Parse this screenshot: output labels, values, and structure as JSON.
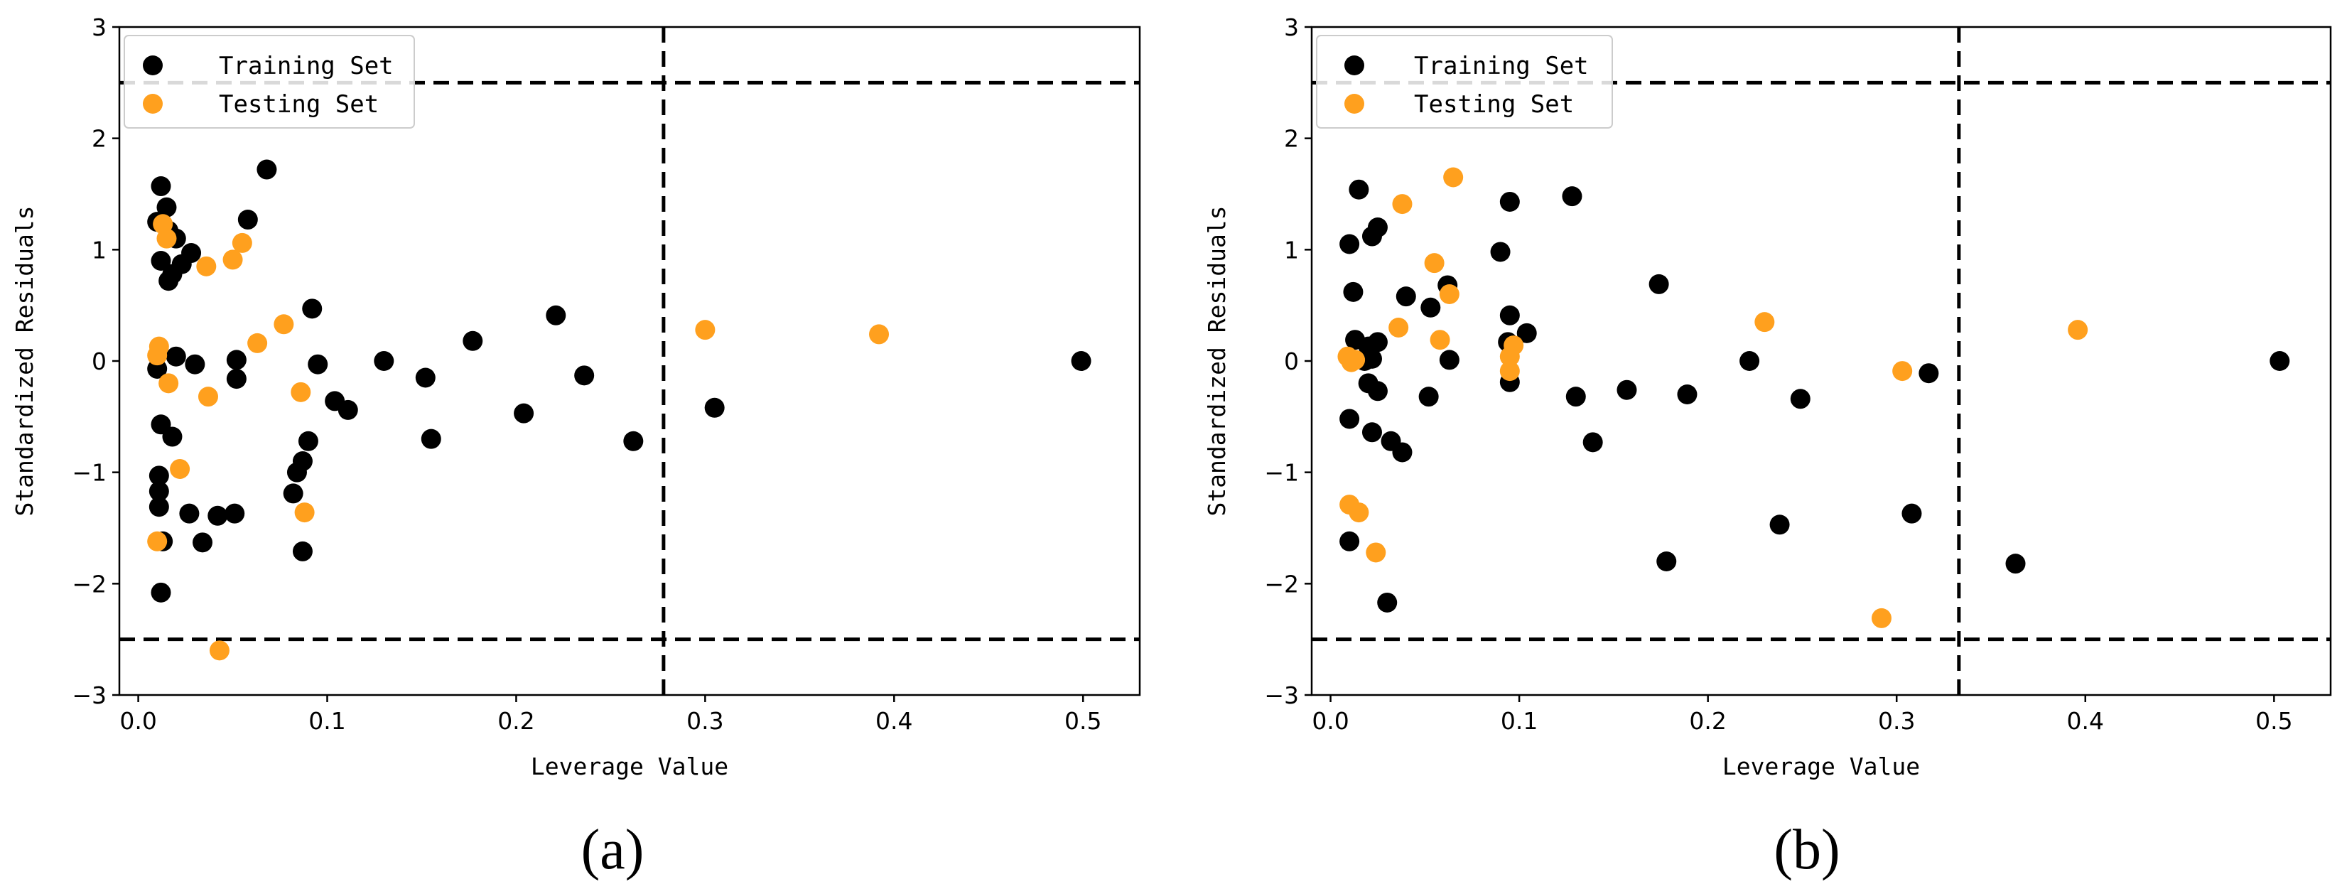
{
  "colors": {
    "training": "#000000",
    "testing": "#FFA01E",
    "axis": "#000000"
  },
  "chart_data": [
    {
      "type": "scatter",
      "panel_label": "(a)",
      "xlabel": "Leverage Value",
      "ylabel": "Standardized Residuals",
      "xlim": [
        -0.01,
        0.53
      ],
      "ylim": [
        -3,
        3
      ],
      "xticks": [
        0.0,
        0.1,
        0.2,
        0.3,
        0.4,
        0.5
      ],
      "xtick_labels": [
        "0.0",
        "0.1",
        "0.2",
        "0.3",
        "0.4",
        "0.5"
      ],
      "yticks": [
        -3,
        -2,
        -1,
        0,
        1,
        2,
        3
      ],
      "ytick_labels": [
        "−3",
        "−2",
        "−1",
        "0",
        "1",
        "2",
        "3"
      ],
      "hlines": [
        2.5,
        -2.5
      ],
      "vline": 0.278,
      "legend": {
        "position": "upper-left",
        "entries": [
          "Training Set",
          "Testing Set"
        ]
      },
      "series": [
        {
          "name": "Training Set",
          "points": [
            [
              0.012,
              1.57
            ],
            [
              0.015,
              1.38
            ],
            [
              0.01,
              1.25
            ],
            [
              0.016,
              1.17
            ],
            [
              0.02,
              1.1
            ],
            [
              0.028,
              0.97
            ],
            [
              0.023,
              0.87
            ],
            [
              0.012,
              0.9
            ],
            [
              0.018,
              0.78
            ],
            [
              0.016,
              0.72
            ],
            [
              0.068,
              1.72
            ],
            [
              0.058,
              1.27
            ],
            [
              0.01,
              -0.07
            ],
            [
              0.02,
              0.04
            ],
            [
              0.03,
              -0.03
            ],
            [
              0.052,
              0.01
            ],
            [
              0.052,
              -0.16
            ],
            [
              0.092,
              0.47
            ],
            [
              0.095,
              -0.03
            ],
            [
              0.104,
              -0.36
            ],
            [
              0.111,
              -0.44
            ],
            [
              0.13,
              0.0
            ],
            [
              0.152,
              -0.15
            ],
            [
              0.155,
              -0.7
            ],
            [
              0.177,
              0.18
            ],
            [
              0.204,
              -0.47
            ],
            [
              0.221,
              0.41
            ],
            [
              0.236,
              -0.13
            ],
            [
              0.262,
              -0.72
            ],
            [
              0.305,
              -0.42
            ],
            [
              0.499,
              0.0
            ],
            [
              0.012,
              -0.57
            ],
            [
              0.018,
              -0.68
            ],
            [
              0.011,
              -1.03
            ],
            [
              0.011,
              -1.17
            ],
            [
              0.011,
              -1.31
            ],
            [
              0.013,
              -1.62
            ],
            [
              0.012,
              -2.08
            ],
            [
              0.027,
              -1.37
            ],
            [
              0.034,
              -1.63
            ],
            [
              0.042,
              -1.39
            ],
            [
              0.051,
              -1.37
            ],
            [
              0.082,
              -1.19
            ],
            [
              0.084,
              -1.0
            ],
            [
              0.087,
              -0.9
            ],
            [
              0.09,
              -0.72
            ],
            [
              0.087,
              -1.71
            ]
          ]
        },
        {
          "name": "Testing Set",
          "points": [
            [
              0.013,
              1.23
            ],
            [
              0.015,
              1.1
            ],
            [
              0.036,
              0.85
            ],
            [
              0.05,
              0.91
            ],
            [
              0.055,
              1.06
            ],
            [
              0.01,
              0.05
            ],
            [
              0.011,
              0.13
            ],
            [
              0.016,
              -0.2
            ],
            [
              0.037,
              -0.32
            ],
            [
              0.063,
              0.16
            ],
            [
              0.077,
              0.33
            ],
            [
              0.086,
              -0.28
            ],
            [
              0.022,
              -0.97
            ],
            [
              0.088,
              -1.36
            ],
            [
              0.01,
              -1.62
            ],
            [
              0.043,
              -2.6
            ],
            [
              0.3,
              0.28
            ],
            [
              0.392,
              0.24
            ]
          ]
        }
      ]
    },
    {
      "type": "scatter",
      "panel_label": "(b)",
      "xlabel": "Leverage Value",
      "ylabel": "Standardized Residuals",
      "xlim": [
        -0.01,
        0.53
      ],
      "ylim": [
        -3,
        3
      ],
      "xticks": [
        0.0,
        0.1,
        0.2,
        0.3,
        0.4,
        0.5
      ],
      "xtick_labels": [
        "0.0",
        "0.1",
        "0.2",
        "0.3",
        "0.4",
        "0.5"
      ],
      "yticks": [
        -3,
        -2,
        -1,
        0,
        1,
        2,
        3
      ],
      "ytick_labels": [
        "−3",
        "−2",
        "−1",
        "0",
        "1",
        "2",
        "3"
      ],
      "hlines": [
        2.5,
        -2.5
      ],
      "vline": 0.333,
      "legend": {
        "position": "upper-left",
        "entries": [
          "Training Set",
          "Testing Set"
        ]
      },
      "series": [
        {
          "name": "Training Set",
          "points": [
            [
              0.015,
              1.54
            ],
            [
              0.025,
              1.2
            ],
            [
              0.022,
              1.12
            ],
            [
              0.01,
              1.05
            ],
            [
              0.012,
              0.62
            ],
            [
              0.013,
              0.19
            ],
            [
              0.02,
              0.13
            ],
            [
              0.025,
              0.17
            ],
            [
              0.018,
              0.0
            ],
            [
              0.022,
              0.02
            ],
            [
              0.02,
              -0.2
            ],
            [
              0.025,
              -0.27
            ],
            [
              0.01,
              -0.52
            ],
            [
              0.022,
              -0.64
            ],
            [
              0.032,
              -0.72
            ],
            [
              0.038,
              -0.82
            ],
            [
              0.04,
              0.58
            ],
            [
              0.053,
              0.48
            ],
            [
              0.052,
              -0.32
            ],
            [
              0.062,
              0.68
            ],
            [
              0.063,
              0.01
            ],
            [
              0.09,
              0.98
            ],
            [
              0.095,
              1.43
            ],
            [
              0.095,
              0.41
            ],
            [
              0.094,
              0.17
            ],
            [
              0.095,
              -0.19
            ],
            [
              0.104,
              0.25
            ],
            [
              0.128,
              1.48
            ],
            [
              0.13,
              -0.32
            ],
            [
              0.139,
              -0.73
            ],
            [
              0.157,
              -0.26
            ],
            [
              0.174,
              0.69
            ],
            [
              0.178,
              -1.8
            ],
            [
              0.189,
              -0.3
            ],
            [
              0.222,
              0.0
            ],
            [
              0.238,
              -1.47
            ],
            [
              0.249,
              -0.34
            ],
            [
              0.308,
              -1.37
            ],
            [
              0.317,
              -0.11
            ],
            [
              0.363,
              -1.82
            ],
            [
              0.503,
              0.0
            ],
            [
              0.01,
              -1.62
            ],
            [
              0.03,
              -2.17
            ]
          ]
        },
        {
          "name": "Testing Set",
          "points": [
            [
              0.065,
              1.65
            ],
            [
              0.038,
              1.41
            ],
            [
              0.055,
              0.88
            ],
            [
              0.063,
              0.6
            ],
            [
              0.036,
              0.3
            ],
            [
              0.058,
              0.19
            ],
            [
              0.097,
              0.14
            ],
            [
              0.095,
              0.04
            ],
            [
              0.095,
              -0.09
            ],
            [
              0.009,
              0.04
            ],
            [
              0.011,
              -0.01
            ],
            [
              0.013,
              0.01
            ],
            [
              0.01,
              -1.29
            ],
            [
              0.015,
              -1.36
            ],
            [
              0.024,
              -1.72
            ],
            [
              0.23,
              0.35
            ],
            [
              0.303,
              -0.09
            ],
            [
              0.292,
              -2.31
            ],
            [
              0.396,
              0.28
            ]
          ]
        }
      ]
    }
  ]
}
